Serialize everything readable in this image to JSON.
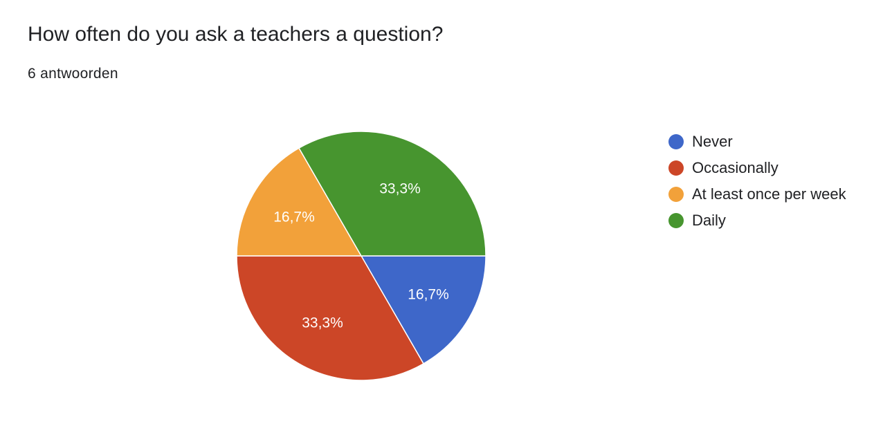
{
  "header": {
    "question": "How often do you ask a teachers a question?",
    "responses": "6 antwoorden"
  },
  "chart_data": {
    "type": "pie",
    "title": "How often do you ask a teachers a question?",
    "slices": [
      {
        "label": "Never",
        "value": 1,
        "percent_label": "16,7%",
        "color": "#3e67c9"
      },
      {
        "label": "Occasionally",
        "value": 2,
        "percent_label": "33,3%",
        "color": "#cc4627"
      },
      {
        "label": "At least once per week",
        "value": 1,
        "percent_label": "16,7%",
        "color": "#f2a13a"
      },
      {
        "label": "Daily",
        "value": 2,
        "percent_label": "33,3%",
        "color": "#47952f"
      }
    ],
    "legend_position": "right",
    "start": "3 o'clock",
    "direction": "clockwise"
  }
}
